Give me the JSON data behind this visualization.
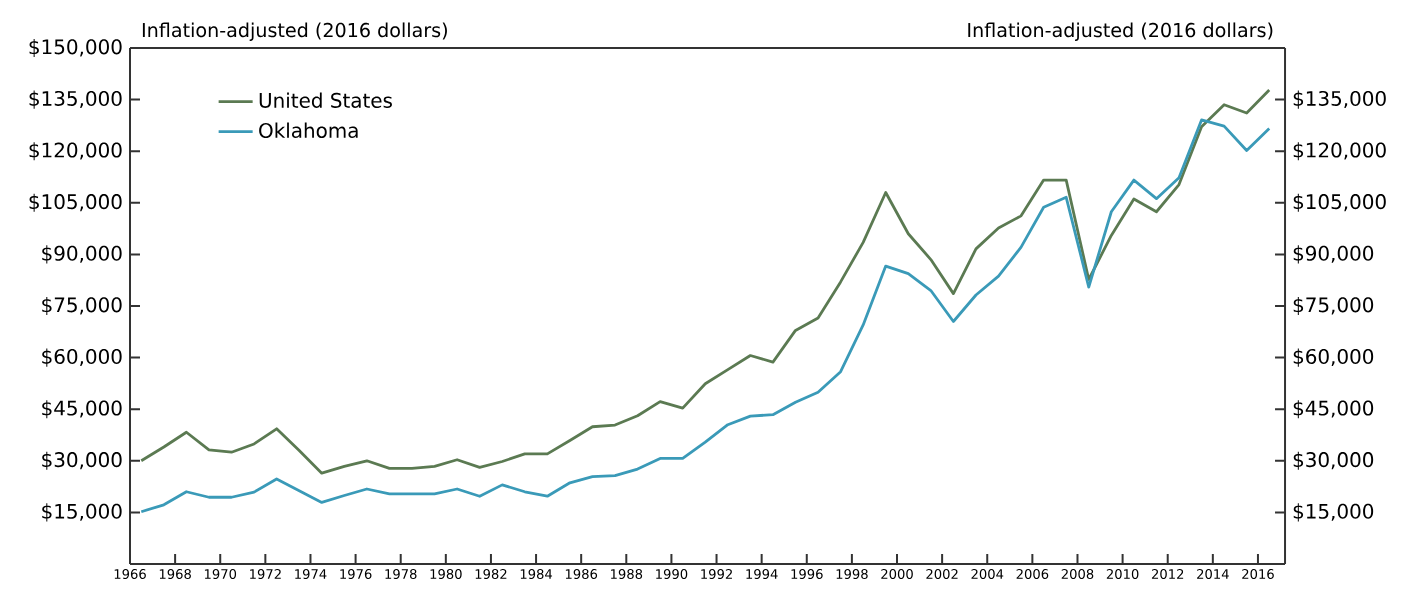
{
  "chart_data": {
    "type": "line",
    "ylabel": "Inflation-adjusted (2016 dollars)",
    "y2label": "Inflation-adjusted (2016 dollars)",
    "x": [
      1966.5,
      1967.5,
      1968.5,
      1969.5,
      1970.5,
      1971.5,
      1972.5,
      1973.5,
      1974.5,
      1975.5,
      1976.5,
      1977.5,
      1978.5,
      1979.5,
      1980.5,
      1981.5,
      1982.5,
      1983.5,
      1984.5,
      1985.5,
      1986.5,
      1987.5,
      1988.5,
      1989.5,
      1990.5,
      1991.5,
      1992.5,
      1993.5,
      1994.5,
      1995.5,
      1996.5,
      1997.5,
      1998.5,
      1999.5,
      2000.5,
      2001.5,
      2002.5,
      2003.5,
      2004.5,
      2005.5,
      2006.5,
      2007.5,
      2008.5,
      2009.5,
      2010.5,
      2011.5,
      2012.5,
      2013.5,
      2014.5,
      2015.5,
      2016.5
    ],
    "series": [
      {
        "name": "United States",
        "color": "#5b7a52",
        "values": [
          30000,
          34000,
          38300,
          33200,
          32500,
          34900,
          39300,
          33000,
          26400,
          28400,
          30000,
          27800,
          27800,
          28400,
          30300,
          28100,
          29800,
          32000,
          32000,
          35900,
          39900,
          40400,
          43100,
          47200,
          45300,
          52400,
          56500,
          60600,
          58700,
          67900,
          71500,
          82000,
          93500,
          108000,
          96000,
          88500,
          78600,
          91600,
          97700,
          101200,
          111600,
          111600,
          82700,
          95500,
          106100,
          102400,
          110300,
          127100,
          133500,
          131100,
          137800
        ]
      },
      {
        "name": "Oklahoma",
        "color": "#3a9ab8",
        "values": [
          15200,
          17200,
          21000,
          19400,
          19400,
          20900,
          24700,
          21300,
          17900,
          19900,
          21800,
          20400,
          20400,
          20400,
          21800,
          19700,
          23000,
          21000,
          19700,
          23600,
          25400,
          25700,
          27600,
          30700,
          30700,
          35400,
          40500,
          43000,
          43400,
          47000,
          49900,
          55900,
          69500,
          86600,
          84400,
          79500,
          70500,
          78200,
          83700,
          92100,
          103700,
          106600,
          80500,
          102400,
          111600,
          106200,
          112300,
          129100,
          127300,
          120200,
          126600
        ]
      }
    ],
    "xlim": [
      1966,
      2017.2
    ],
    "xticks": [
      1966,
      1968,
      1970,
      1972,
      1974,
      1976,
      1978,
      1980,
      1982,
      1984,
      1986,
      1988,
      1990,
      1992,
      1994,
      1996,
      1998,
      2000,
      2002,
      2004,
      2006,
      2008,
      2010,
      2012,
      2014,
      2016
    ],
    "ylim": [
      0,
      150000
    ],
    "yticks": [
      {
        "value": 15000,
        "label": "$15,000"
      },
      {
        "value": 30000,
        "label": "$30,000"
      },
      {
        "value": 45000,
        "label": "$45,000"
      },
      {
        "value": 60000,
        "label": "$60,000"
      },
      {
        "value": 75000,
        "label": "$75,000"
      },
      {
        "value": 90000,
        "label": "$90,000"
      },
      {
        "value": 105000,
        "label": "$105,000"
      },
      {
        "value": 120000,
        "label": "$120,000"
      },
      {
        "value": 135000,
        "label": "$135,000"
      },
      {
        "value": 150000,
        "label": "$150,000"
      }
    ],
    "y2lim": [
      0,
      150000
    ],
    "y2ticks": [
      {
        "value": 15000,
        "label": "$15,000"
      },
      {
        "value": 30000,
        "label": "$30,000"
      },
      {
        "value": 45000,
        "label": "$45,000"
      },
      {
        "value": 60000,
        "label": "$60,000"
      },
      {
        "value": 75000,
        "label": "$75,000"
      },
      {
        "value": 90000,
        "label": "$90,000"
      },
      {
        "value": 105000,
        "label": "$105,000"
      },
      {
        "value": 120000,
        "label": "$120,000"
      },
      {
        "value": 135000,
        "label": "$135,000"
      }
    ],
    "legend": "top left",
    "grid": false,
    "marker": "none",
    "line_style": "solid"
  }
}
